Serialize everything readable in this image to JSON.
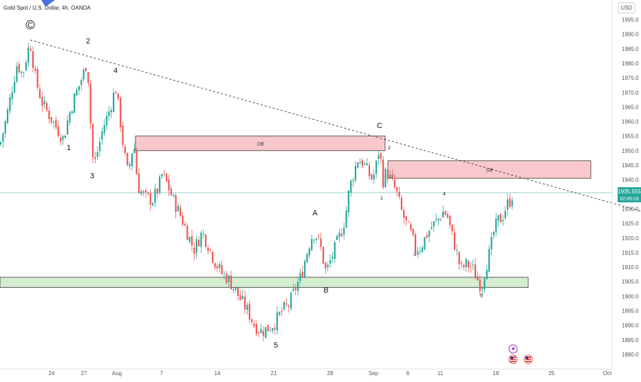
{
  "header": {
    "title": "Gold Spot / U.S. Dollar, 4h, OANDA",
    "currency": "USD"
  },
  "price_tag": {
    "price": "1935.555",
    "countdown": "02:05:19"
  },
  "colors": {
    "up": "#26a69a",
    "down": "#ef5350",
    "ob_fill": "#f8c8cc",
    "support_fill": "#d4ecd0",
    "price_line": "#26a69a"
  },
  "icons": [
    "lightning-icon",
    "us-flag-icon",
    "us-flag-icon"
  ],
  "chart_data": {
    "type": "candlestick",
    "x_ticks": [
      "24",
      "27",
      "Aug",
      "7",
      "14",
      "21",
      "28",
      "Sep",
      "6",
      "11",
      "18",
      "25",
      "Oct"
    ],
    "y_ticks": [
      1875,
      1880,
      1885,
      1890,
      1895,
      1900,
      1905,
      1910,
      1915,
      1920,
      1925,
      1930,
      1935,
      1940,
      1945,
      1950,
      1955,
      1960,
      1965,
      1970,
      1975,
      1980,
      1985,
      1990,
      1995
    ],
    "ylim": [
      1875,
      1997
    ],
    "current_price": 1935.555,
    "path": [
      [
        0,
        1952
      ],
      [
        10,
        1962
      ],
      [
        18,
        1972
      ],
      [
        25,
        1980
      ],
      [
        33,
        1976
      ],
      [
        40,
        1984
      ],
      [
        44,
        1987
      ],
      [
        52,
        1974
      ],
      [
        62,
        1966
      ],
      [
        72,
        1962
      ],
      [
        82,
        1958
      ],
      [
        92,
        1954
      ],
      [
        100,
        1962
      ],
      [
        108,
        1968
      ],
      [
        116,
        1973
      ],
      [
        122,
        1977
      ],
      [
        127,
        1981
      ],
      [
        131,
        1962
      ],
      [
        136,
        1944
      ],
      [
        142,
        1950
      ],
      [
        150,
        1958
      ],
      [
        158,
        1963
      ],
      [
        164,
        1968
      ],
      [
        168,
        1972
      ],
      [
        174,
        1962
      ],
      [
        180,
        1950
      ],
      [
        186,
        1942
      ],
      [
        192,
        1950
      ],
      [
        196,
        1951
      ],
      [
        200,
        1938
      ],
      [
        210,
        1934
      ],
      [
        222,
        1933
      ],
      [
        230,
        1937
      ],
      [
        236,
        1942
      ],
      [
        244,
        1938
      ],
      [
        252,
        1933
      ],
      [
        262,
        1928
      ],
      [
        272,
        1922
      ],
      [
        282,
        1916
      ],
      [
        294,
        1922
      ],
      [
        302,
        1918
      ],
      [
        312,
        1912
      ],
      [
        322,
        1908
      ],
      [
        332,
        1906
      ],
      [
        342,
        1902
      ],
      [
        352,
        1898
      ],
      [
        360,
        1895
      ],
      [
        370,
        1890
      ],
      [
        380,
        1888
      ],
      [
        390,
        1889
      ],
      [
        400,
        1891
      ],
      [
        410,
        1895
      ],
      [
        420,
        1897
      ],
      [
        430,
        1903
      ],
      [
        438,
        1907
      ],
      [
        444,
        1913
      ],
      [
        452,
        1920
      ],
      [
        458,
        1922
      ],
      [
        466,
        1917
      ],
      [
        474,
        1908
      ],
      [
        480,
        1912
      ],
      [
        488,
        1917
      ],
      [
        496,
        1922
      ],
      [
        502,
        1927
      ],
      [
        508,
        1937
      ],
      [
        514,
        1942
      ],
      [
        520,
        1947
      ],
      [
        528,
        1946
      ],
      [
        536,
        1942
      ],
      [
        542,
        1940
      ],
      [
        548,
        1946
      ],
      [
        552,
        1952
      ],
      [
        556,
        1939
      ],
      [
        562,
        1943
      ],
      [
        568,
        1940
      ],
      [
        576,
        1936
      ],
      [
        584,
        1929
      ],
      [
        592,
        1924
      ],
      [
        598,
        1921
      ],
      [
        604,
        1916
      ],
      [
        612,
        1917
      ],
      [
        620,
        1921
      ],
      [
        628,
        1924
      ],
      [
        636,
        1926
      ],
      [
        644,
        1929
      ],
      [
        650,
        1928
      ],
      [
        656,
        1922
      ],
      [
        664,
        1915
      ],
      [
        670,
        1909
      ],
      [
        678,
        1911
      ],
      [
        686,
        1910
      ],
      [
        694,
        1906
      ],
      [
        700,
        1903
      ],
      [
        706,
        1910
      ],
      [
        712,
        1915
      ],
      [
        718,
        1922
      ],
      [
        724,
        1926
      ],
      [
        730,
        1927
      ],
      [
        736,
        1931
      ],
      [
        742,
        1933
      ],
      [
        746,
        1935.5
      ]
    ],
    "order_blocks": [
      {
        "label": "OB",
        "from_x": "Aug",
        "to_x": "Sep",
        "low": 1950,
        "high": 1955
      },
      {
        "label": "OB",
        "from_x": "Sep",
        "to_x": "Oct",
        "low": 1940.5,
        "high": 1946.5
      }
    ],
    "support_zone": {
      "low": 1903,
      "high": 1906.5
    },
    "trendline": [
      {
        "x": "24",
        "y": 1988
      },
      {
        "x": "Oct",
        "y": 1930
      }
    ],
    "wave_labels": [
      {
        "text": "C",
        "circled": true
      },
      {
        "text": "2"
      },
      {
        "text": "4"
      },
      {
        "text": "1"
      },
      {
        "text": "3"
      },
      {
        "text": "5"
      },
      {
        "text": "A"
      },
      {
        "text": "B"
      },
      {
        "text": "C"
      },
      {
        "text": "2"
      },
      {
        "text": "1"
      },
      {
        "text": "4"
      },
      {
        "text": "3"
      },
      {
        "text": "5"
      }
    ]
  }
}
